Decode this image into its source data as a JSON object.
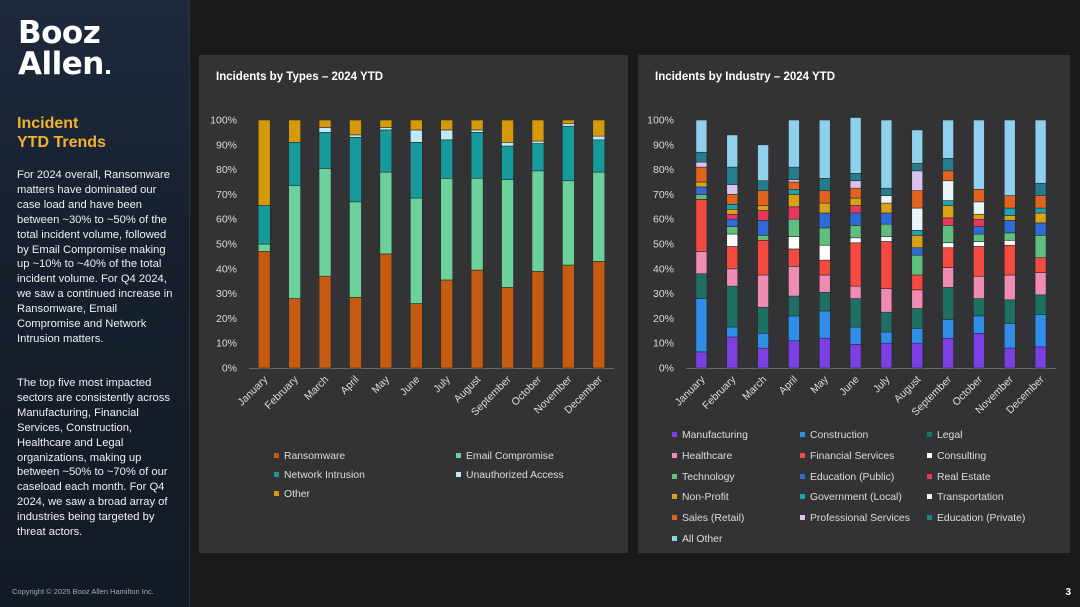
{
  "logo": {
    "line1": "Booz",
    "line2": "Allen"
  },
  "sidebar": {
    "title_line1": "Incident",
    "title_line2": "YTD Trends",
    "paragraph1": "For 2024 overall, Ransomware matters have dominated our case load and have been between ~30% to ~50% of the total incident volume, followed by Email Compromise making up ~10% to ~40% of the total incident volume.  For Q4 2024, we saw a continued increase in Ransomware, Email Compromise and Network Intrusion matters.",
    "paragraph2": "The top five most impacted sectors are consistently across Manufacturing, Financial Services, Construction, Healthcare and Legal organizations, making up between ~50% to ~70% of our caseload each month.  For Q4 2024, we saw a broad array of industries being targeted by threat actors."
  },
  "footer": {
    "copyright": "Copyright © 2025 Booz Allen Hamilton Inc.",
    "page_number": "3"
  },
  "chart_data": [
    {
      "type": "bar",
      "stacked": true,
      "title": "Incidents by Types – 2024 YTD",
      "categories": [
        "January",
        "February",
        "March",
        "April",
        "May",
        "June",
        "July",
        "August",
        "September",
        "October",
        "November",
        "December"
      ],
      "y_ticks": [
        "0%",
        "10%",
        "20%",
        "30%",
        "40%",
        "50%",
        "60%",
        "70%",
        "80%",
        "90%",
        "100%"
      ],
      "ylim": [
        0,
        100
      ],
      "legend_position": "bottom",
      "series": [
        {
          "name": "Ransomware",
          "color": "#c55a11",
          "values": [
            47,
            28,
            37,
            28.5,
            46,
            26,
            35.5,
            39.5,
            32.5,
            39,
            41.5,
            43
          ]
        },
        {
          "name": "Email Compromise",
          "color": "#6ad29a",
          "values": [
            3,
            45.5,
            43.5,
            38.5,
            33,
            42.5,
            41,
            37,
            43.5,
            40.5,
            34,
            36
          ]
        },
        {
          "name": "Network Intrusion",
          "color": "#179a9c",
          "values": [
            15.5,
            17.5,
            14.5,
            26,
            17,
            22.5,
            15.5,
            18.5,
            13.5,
            11,
            22,
            13
          ]
        },
        {
          "name": "Unauthorized Access",
          "color": "#bfe9f6",
          "values": [
            0,
            0,
            2,
            1,
            1,
            5,
            4,
            1,
            1.5,
            1,
            1,
            1.5
          ]
        },
        {
          "name": "Other",
          "color": "#d59a05",
          "values": [
            34.5,
            9,
            3,
            6,
            3,
            4,
            4,
            4,
            9,
            8.5,
            1.5,
            6.5
          ]
        }
      ]
    },
    {
      "type": "bar",
      "stacked": true,
      "title": "Incidents by  Industry – 2024 YTD",
      "categories": [
        "January",
        "February",
        "March",
        "April",
        "May",
        "June",
        "July",
        "August",
        "September",
        "October",
        "November",
        "December"
      ],
      "y_ticks": [
        "0%",
        "10%",
        "20%",
        "30%",
        "40%",
        "50%",
        "60%",
        "70%",
        "80%",
        "90%",
        "100%"
      ],
      "ylim": [
        0,
        100
      ],
      "legend_position": "bottom",
      "series": [
        {
          "name": "Manufacturing",
          "color": "#7b3fe4",
          "values": [
            6.5,
            12.5,
            8,
            11,
            12,
            9.5,
            10,
            10,
            12,
            14,
            8,
            8.5
          ]
        },
        {
          "name": "Construction",
          "color": "#2f8fe8",
          "values": [
            21.5,
            4,
            6,
            10,
            11,
            7,
            4.5,
            6,
            7.5,
            7,
            10,
            13
          ]
        },
        {
          "name": "Legal",
          "color": "#1e6f64",
          "values": [
            10,
            16.5,
            10.5,
            8,
            7.5,
            11.5,
            8,
            8,
            13,
            7,
            9.5,
            8
          ]
        },
        {
          "name": "Healthcare",
          "color": "#f08cb4",
          "values": [
            9,
            7,
            13,
            12,
            7,
            5,
            9.5,
            7.5,
            8,
            9,
            10,
            9
          ]
        },
        {
          "name": "Financial Services",
          "color": "#f44a3f",
          "values": [
            21,
            9,
            14,
            7,
            6,
            17.5,
            19,
            6,
            8,
            12,
            12,
            6
          ]
        },
        {
          "name": "Consulting",
          "color": "#ffffff",
          "values": [
            0,
            5,
            0,
            5,
            6,
            2,
            2,
            0,
            2,
            2,
            2,
            0
          ]
        },
        {
          "name": "Technology",
          "color": "#5fbf7f",
          "values": [
            2,
            3,
            2,
            7,
            7,
            5,
            5,
            8,
            7,
            3,
            3,
            9
          ]
        },
        {
          "name": "Education (Public)",
          "color": "#2f6bd8",
          "values": [
            3,
            3,
            6,
            0,
            6,
            5,
            4.5,
            3,
            0,
            3,
            5,
            5
          ]
        },
        {
          "name": "Real Estate",
          "color": "#e8365c",
          "values": [
            0,
            2,
            4,
            5,
            0,
            3,
            0,
            0,
            3,
            3,
            0,
            0
          ]
        },
        {
          "name": "Non-Profit",
          "color": "#d8a317",
          "values": [
            2,
            2,
            2,
            5,
            4,
            3,
            4,
            5,
            5,
            2,
            2,
            4
          ]
        },
        {
          "name": "Government (Local)",
          "color": "#1aa3b0",
          "values": [
            0,
            2,
            0,
            2,
            0,
            0,
            0,
            2,
            2,
            0,
            3,
            2
          ]
        },
        {
          "name": "Transportation",
          "color": "#e8f6fb",
          "values": [
            0,
            0,
            0,
            0,
            0,
            0,
            3,
            9,
            8,
            5,
            0,
            0
          ]
        },
        {
          "name": "Sales (Retail)",
          "color": "#e2631f",
          "values": [
            6,
            4,
            6,
            3,
            5,
            4,
            0,
            7,
            4,
            5,
            5,
            5
          ]
        },
        {
          "name": "Professional Services",
          "color": "#d9c2f0",
          "values": [
            2,
            4,
            0,
            1,
            0,
            3,
            0,
            8,
            0,
            0,
            0,
            0
          ]
        },
        {
          "name": "Education (Private)",
          "color": "#247c8c",
          "values": [
            4,
            7,
            4,
            5,
            5,
            3,
            3,
            3,
            5,
            0,
            0,
            5
          ]
        },
        {
          "name": "All Other",
          "color": "#8fd0ee",
          "values": [
            13,
            13,
            14.5,
            19,
            23.5,
            22.5,
            27.5,
            13.5,
            15.5,
            28,
            30.5,
            25.5
          ]
        }
      ]
    }
  ]
}
